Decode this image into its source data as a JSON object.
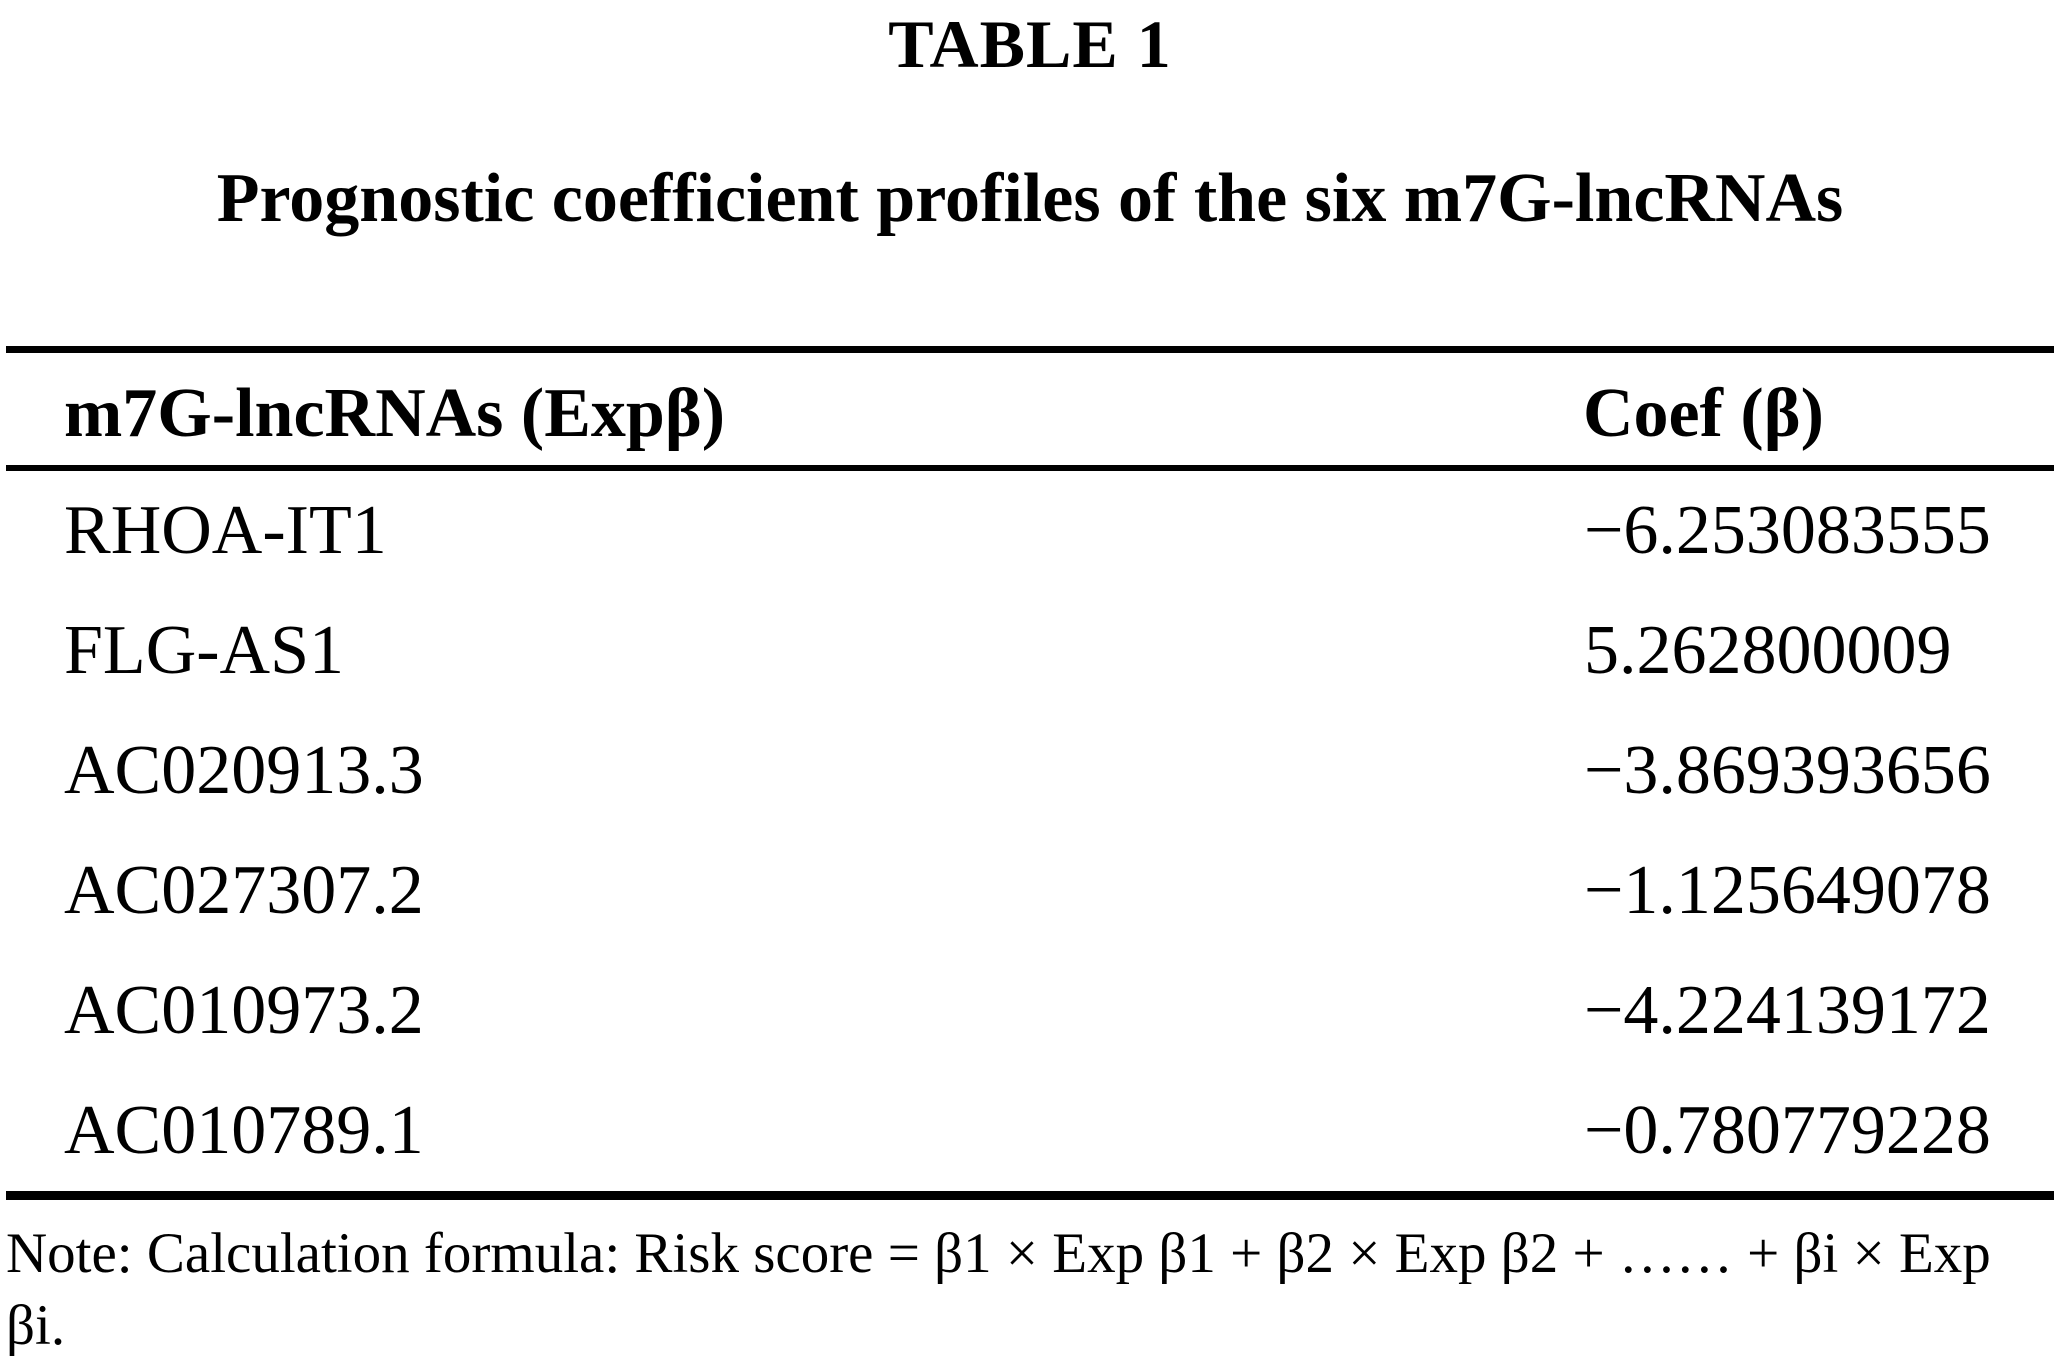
{
  "figure": {
    "label": "TABLE 1",
    "caption": "Prognostic coefficient profiles of the six m7G-lncRNAs"
  },
  "table": {
    "columns": [
      "m7G-lncRNAs (Expβ)",
      "Coef (β)"
    ],
    "rows": [
      {
        "lncRNA": "RHOA-IT1",
        "coef": "−6.253083555"
      },
      {
        "lncRNA": "FLG-AS1",
        "coef": "5.262800009"
      },
      {
        "lncRNA": "AC020913.3",
        "coef": "−3.869393656"
      },
      {
        "lncRNA": "AC027307.2",
        "coef": "−1.125649078"
      },
      {
        "lncRNA": "AC010973.2",
        "coef": "−4.224139172"
      },
      {
        "lncRNA": "AC010789.1",
        "coef": "−0.780779228"
      }
    ]
  },
  "note": "Note: Calculation formula: Risk score = β1 × Exp β1 + β2 × Exp β2 + …… + βi × Exp βi.",
  "colors": {
    "background": "#ffffff",
    "text": "#000000",
    "rule": "#000000"
  },
  "chart_data": {
    "type": "table",
    "title": "Prognostic coefficient profiles of the six m7G-lncRNAs",
    "columns": [
      "m7G-lncRNAs (Expβ)",
      "Coef (β)"
    ],
    "categories": [
      "RHOA-IT1",
      "FLG-AS1",
      "AC020913.3",
      "AC027307.2",
      "AC010973.2",
      "AC010789.1"
    ],
    "values": [
      -6.253083555,
      5.262800009,
      -3.869393656,
      -1.125649078,
      -4.224139172,
      -0.780779228
    ]
  }
}
